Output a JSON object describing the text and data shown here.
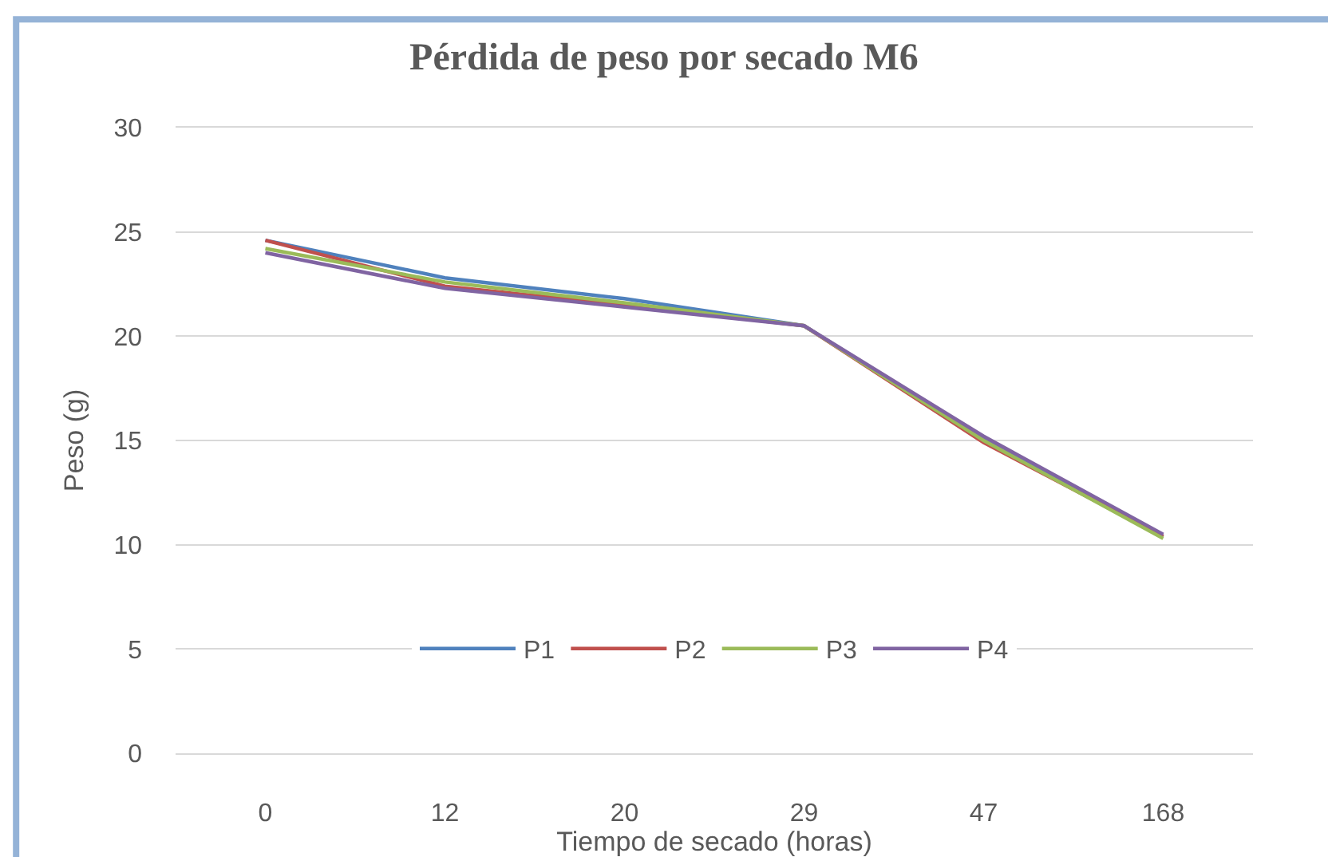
{
  "chart_data": {
    "type": "line",
    "title": "Pérdida de peso por secado M6",
    "xlabel": "Tiempo de secado (horas)",
    "ylabel": "Peso (g)",
    "categories": [
      "0",
      "12",
      "20",
      "29",
      "47",
      "168"
    ],
    "series": [
      {
        "name": "P1",
        "color": "#4f81bd",
        "values": [
          24.6,
          22.8,
          21.8,
          20.5,
          15.1,
          10.4
        ]
      },
      {
        "name": "P2",
        "color": "#c0504d",
        "values": [
          24.6,
          22.4,
          21.5,
          20.5,
          14.9,
          10.4
        ]
      },
      {
        "name": "P3",
        "color": "#9bbb59",
        "values": [
          24.2,
          22.6,
          21.6,
          20.5,
          15.0,
          10.3
        ]
      },
      {
        "name": "P4",
        "color": "#8064a2",
        "values": [
          24.0,
          22.3,
          21.4,
          20.5,
          15.2,
          10.5
        ]
      }
    ],
    "ylim": [
      0,
      30
    ],
    "yticks": [
      0,
      5,
      10,
      15,
      20,
      25,
      30
    ],
    "grid": "y",
    "legend": "bottom",
    "marker": "none",
    "line_style": "solid"
  }
}
